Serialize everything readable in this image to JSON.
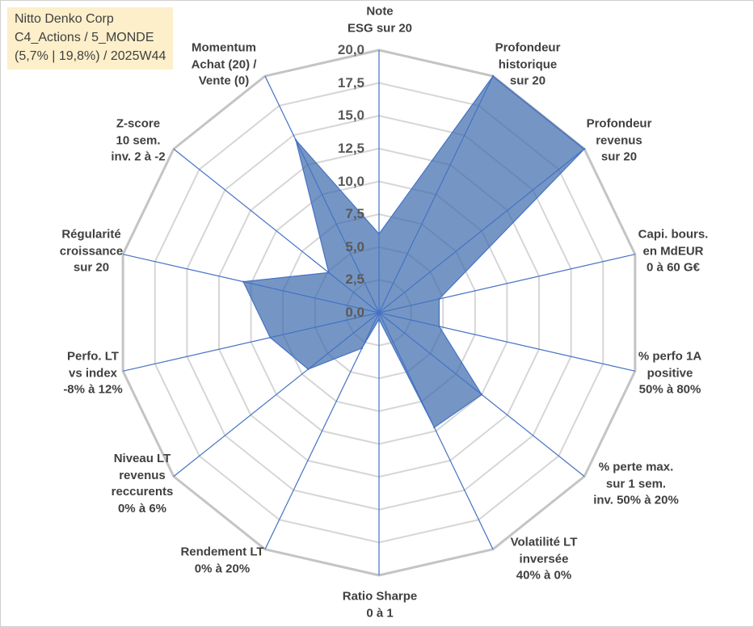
{
  "chart_data": {
    "type": "area",
    "polar": true,
    "title": "Nitto Denko Corp",
    "subtitle": [
      "C4_Actions / 5_MONDE",
      "(5,7% | 19,8%) / 2025W44"
    ],
    "categories": [
      "Note\nESG sur 20",
      "Profondeur\nhistorique\nsur 20",
      "Profondeur\nrevenus\nsur 20",
      "Capi. bours.\nen MdEUR\n0 à 60 G€",
      "% perfo 1A\npositive\n50% à 80%",
      "% perte max.\nsur 1 sem.\ninv. 50% à 20%",
      "Volatilité LT\ninversée\n40% à 0%",
      "Ratio Sharpe\n0 à 1",
      "Rendement LT\n0% à 20%",
      "Niveau LT\nrevenus\nreccurents\n0% à 6%",
      "Perfo. LT\nvs index\n-8% à 12%",
      "Régularité\ncroissance\nsur 20",
      "Z-score\n10 sem.\ninv. 2 à -2",
      "Momentum\nAchat (20) /\nVente (0)"
    ],
    "series": [
      {
        "values": [
          6.0,
          20.0,
          20.0,
          4.7,
          4.7,
          10.0,
          9.7,
          0.5,
          3.0,
          6.9,
          8.5,
          10.6,
          4.9,
          14.6
        ]
      }
    ],
    "rlim": [
      0,
      20
    ],
    "tick_values": [
      0,
      2.5,
      5,
      7.5,
      10,
      12.5,
      15,
      17.5,
      20
    ],
    "tick_labels": [
      "0,0",
      "2,5",
      "5,0",
      "7,5",
      "10,0",
      "12,5",
      "15,0",
      "17,5",
      "20,0"
    ],
    "grid": true,
    "legend": "none",
    "colors": {
      "fill": "#3a6aad",
      "stroke": "#4472c4",
      "spokes": "#4472c4",
      "grid": "#d6d6d6",
      "outer_grid": "#c4c4c4",
      "info_box_bg": "#fcefca"
    }
  }
}
